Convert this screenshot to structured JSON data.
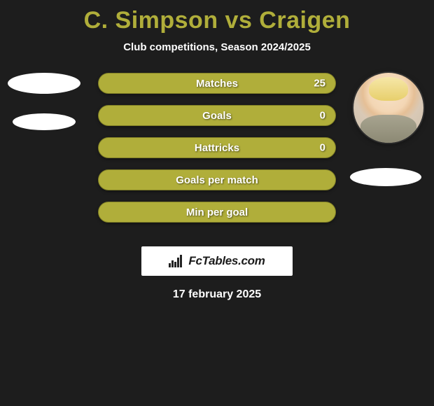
{
  "title": "C. Simpson vs Craigen",
  "subtitle": "Club competitions, Season 2024/2025",
  "colors": {
    "accent": "#b0ae3a",
    "accent_border": "#7f7e26",
    "background": "#1d1d1d",
    "text": "#ffffff",
    "logo_bg": "#ffffff",
    "logo_text": "#1b1b1b"
  },
  "stats": [
    {
      "label": "Matches",
      "value": "25"
    },
    {
      "label": "Goals",
      "value": "0"
    },
    {
      "label": "Hattricks",
      "value": "0"
    },
    {
      "label": "Goals per match",
      "value": ""
    },
    {
      "label": "Min per goal",
      "value": ""
    }
  ],
  "logo": {
    "text": "FcTables.com"
  },
  "date": "17 february 2025"
}
